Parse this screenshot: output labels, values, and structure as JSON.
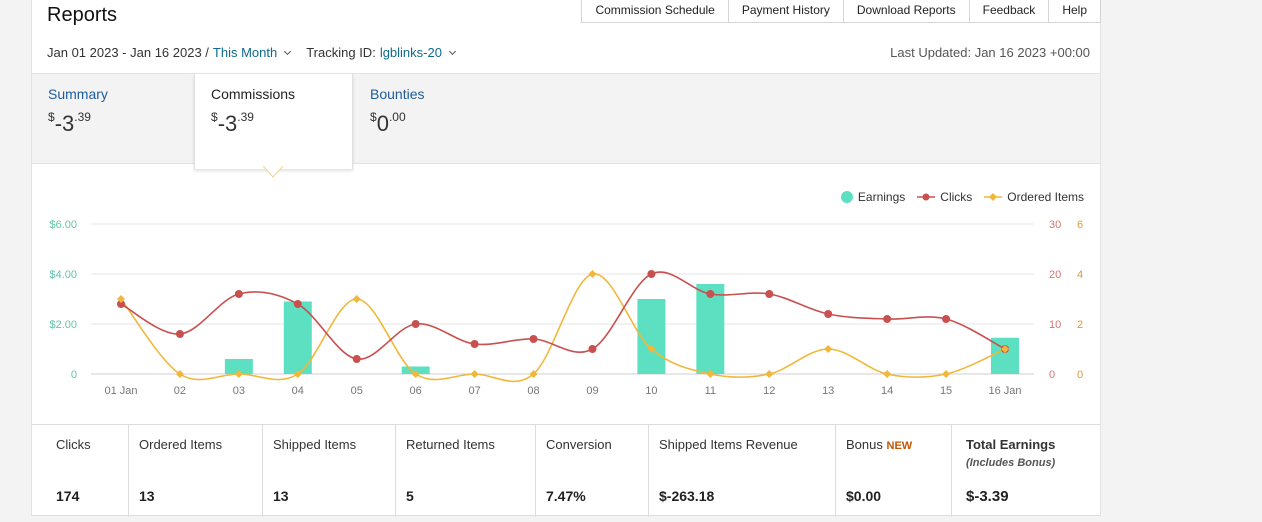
{
  "header": {
    "title": "Reports",
    "nav": [
      "Commission Schedule",
      "Payment History",
      "Download Reports",
      "Feedback",
      "Help"
    ],
    "date_range": "Jan 01 2023 - Jan 16 2023 /",
    "period": "This Month",
    "tracking_label": "Tracking ID:",
    "tracking_id": "lgblinks-20",
    "last_updated": "Last Updated: Jan 16 2023 +00:00"
  },
  "tabs": [
    {
      "label": "Summary",
      "currency": "$",
      "whole": "-3",
      "cents": ".39"
    },
    {
      "label": "Commissions",
      "currency": "$",
      "whole": "-3",
      "cents": ".39"
    },
    {
      "label": "Bounties",
      "currency": "$",
      "whole": "0",
      "cents": ".00"
    }
  ],
  "legend": [
    {
      "name": "Earnings",
      "color": "#5de0c1"
    },
    {
      "name": "Clicks",
      "color": "#c8504f"
    },
    {
      "name": "Ordered Items",
      "color": "#f0b73a"
    }
  ],
  "chart_data": {
    "type": "bar",
    "categories": [
      "01 Jan",
      "02",
      "03",
      "04",
      "05",
      "06",
      "07",
      "08",
      "09",
      "10",
      "11",
      "12",
      "13",
      "14",
      "15",
      "16 Jan"
    ],
    "left_axis": {
      "ticks": [
        "$6.00",
        "$4.00",
        "$2.00",
        "0"
      ],
      "ylim": [
        0,
        6
      ]
    },
    "right_axis_clicks": {
      "ticks": [
        "30",
        "20",
        "10",
        "0"
      ],
      "ylim": [
        0,
        30
      ]
    },
    "right_axis_items": {
      "ticks": [
        "6",
        "4",
        "2",
        "0"
      ],
      "ylim": [
        0,
        6
      ]
    },
    "series": [
      {
        "name": "Earnings",
        "type": "bar",
        "axis": "left",
        "values": [
          0,
          0,
          0.6,
          2.9,
          0,
          0.3,
          0,
          0,
          0,
          3.0,
          3.6,
          0,
          0,
          0,
          0,
          1.45
        ]
      },
      {
        "name": "Clicks",
        "type": "line",
        "axis": "right_clicks",
        "values": [
          14,
          8,
          16,
          14,
          3,
          10,
          6,
          7,
          5,
          20,
          16,
          16,
          12,
          11,
          11,
          5
        ]
      },
      {
        "name": "Ordered Items",
        "type": "line",
        "axis": "right_items",
        "values": [
          3,
          0,
          0,
          0,
          3,
          0,
          0,
          0,
          4,
          1,
          0,
          0,
          1,
          0,
          0,
          1
        ]
      }
    ],
    "grid": true,
    "legend_position": "top-right"
  },
  "stats": [
    {
      "label": "Clicks",
      "value": "174"
    },
    {
      "label": "Ordered Items",
      "value": "13"
    },
    {
      "label": "Shipped Items",
      "value": "13"
    },
    {
      "label": "Returned Items",
      "value": "5"
    },
    {
      "label": "Conversion",
      "value": "7.47%"
    },
    {
      "label": "Shipped Items Revenue",
      "value": "$-263.18"
    },
    {
      "label": "Bonus",
      "badge": "NEW",
      "value": "$0.00"
    },
    {
      "label": "Total Earnings",
      "sub": "(Includes Bonus)",
      "value": "$-3.39"
    }
  ]
}
